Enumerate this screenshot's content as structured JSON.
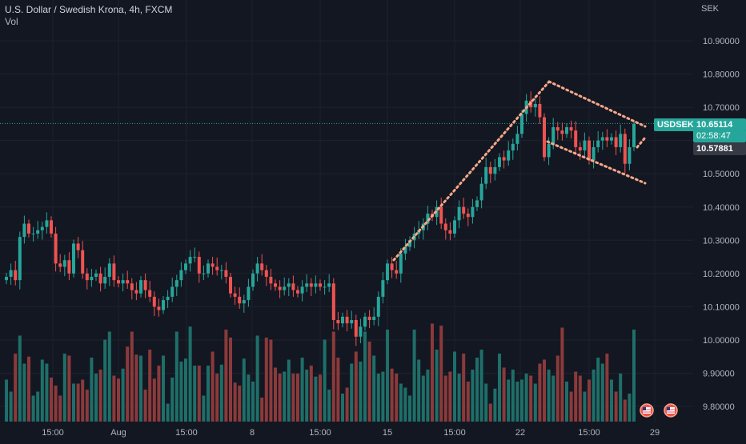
{
  "header": {
    "title": "U.S. Dollar / Swedish Krona, 4h, FXCM",
    "indicator": "Vol"
  },
  "price_axis": {
    "unit": "SEK",
    "ticks": [
      "10.90000",
      "10.80000",
      "10.70000",
      "10.60000",
      "10.50000",
      "10.40000",
      "10.30000",
      "10.20000",
      "10.10000",
      "10.00000",
      "9.90000",
      "9.80000"
    ]
  },
  "time_axis": {
    "labels": [
      "15:00",
      "Aug",
      "15:00",
      "8",
      "15:00",
      "15",
      "15:00",
      "22",
      "15:00",
      "29"
    ]
  },
  "price_tags": {
    "symbol": "USDSEK",
    "last_price": "10.65114",
    "countdown": "02:58:47",
    "reference_price": "10.57881"
  },
  "colors": {
    "background": "#131722",
    "up": "#26a69a",
    "down": "#ef5350",
    "vol_up": "#1e6f69",
    "vol_down": "#8b3a3b",
    "pattern_dots": "#f7a88a",
    "grid": "#1e222d",
    "axis_text": "#b2b5be"
  },
  "icons": [
    "us-flag-event-icon",
    "us-flag-event-icon"
  ],
  "chart_data": {
    "type": "candlestick",
    "title": "U.S. Dollar / Swedish Krona, 4h, FXCM",
    "timeframe": "4h",
    "y_scale": {
      "min": 9.78,
      "max": 10.92,
      "unit": "SEK"
    },
    "grid": true,
    "close_series": [
      10.19,
      10.21,
      10.18,
      10.31,
      10.35,
      10.32,
      10.32,
      10.33,
      10.34,
      10.36,
      10.32,
      10.23,
      10.22,
      10.24,
      10.2,
      10.29,
      10.27,
      10.2,
      10.18,
      10.19,
      10.2,
      10.17,
      10.19,
      10.23,
      10.18,
      10.17,
      10.18,
      10.17,
      10.15,
      10.14,
      10.18,
      10.15,
      10.13,
      10.1,
      10.09,
      10.12,
      10.13,
      10.16,
      10.18,
      10.21,
      10.23,
      10.25,
      10.25,
      10.2,
      10.2,
      10.23,
      10.22,
      10.21,
      10.21,
      10.19,
      10.14,
      10.13,
      10.11,
      10.12,
      10.16,
      10.2,
      10.23,
      10.21,
      10.19,
      10.17,
      10.16,
      10.15,
      10.16,
      10.17,
      10.15,
      10.14,
      10.16,
      10.17,
      10.16,
      10.17,
      10.16,
      10.16,
      10.17,
      10.06,
      10.05,
      10.07,
      10.05,
      10.06,
      10.01,
      10.04,
      10.07,
      10.06,
      10.07,
      10.13,
      10.18,
      10.23,
      10.21,
      10.2,
      10.26,
      10.28,
      10.3,
      10.32,
      10.33,
      10.35,
      10.38,
      10.37,
      10.4,
      10.35,
      10.33,
      10.32,
      10.36,
      10.4,
      10.38,
      10.37,
      10.4,
      10.42,
      10.47,
      10.52,
      10.5,
      10.52,
      10.55,
      10.54,
      10.57,
      10.59,
      10.62,
      10.68,
      10.72,
      10.7,
      10.71,
      10.67,
      10.55,
      10.59,
      10.64,
      10.63,
      10.62,
      10.64,
      10.63,
      10.58,
      10.57,
      10.6,
      10.54,
      10.58,
      10.6,
      10.61,
      10.6,
      10.61,
      10.58,
      10.62,
      10.53,
      10.58,
      10.65
    ],
    "volume_series": [
      42,
      30,
      68,
      86,
      58,
      65,
      26,
      30,
      62,
      58,
      44,
      36,
      26,
      68,
      66,
      38,
      38,
      42,
      32,
      64,
      48,
      52,
      82,
      90,
      46,
      43,
      53,
      75,
      90,
      67,
      66,
      32,
      72,
      43,
      56,
      66,
      18,
      44,
      90,
      60,
      63,
      95,
      56,
      56,
      26,
      56,
      70,
      48,
      57,
      92,
      84,
      39,
      36,
      63,
      47,
      40,
      86,
      24,
      84,
      82,
      54,
      48,
      50,
      62,
      48,
      48,
      64,
      52,
      56,
      45,
      47,
      82,
      32,
      90,
      64,
      28,
      34,
      58,
      70,
      60,
      90,
      80,
      66,
      48,
      50,
      92,
      53,
      48,
      38,
      34,
      26,
      92,
      62,
      46,
      52,
      98,
      72,
      96,
      46,
      50,
      70,
      48,
      68,
      40,
      52,
      64,
      72,
      38,
      18,
      33,
      68,
      54,
      42,
      52,
      40,
      42,
      48,
      46,
      38,
      58,
      62,
      52,
      46,
      66,
      94,
      40,
      30,
      50,
      46,
      30,
      42,
      52,
      64,
      58,
      68,
      42,
      30,
      48,
      22,
      28,
      92
    ],
    "patterns": [
      {
        "type": "rising-channel-line",
        "from_index": 96,
        "to_index": 116,
        "upper": true
      },
      {
        "type": "falling-wedge",
        "from_index": 116,
        "to_index": 140
      }
    ]
  }
}
